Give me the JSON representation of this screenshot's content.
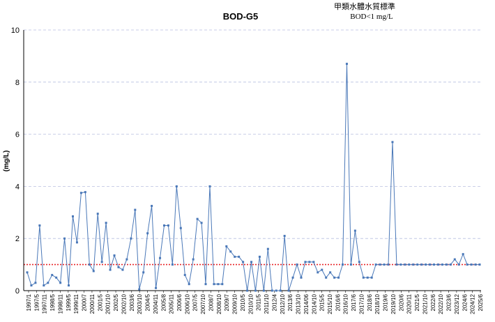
{
  "chart_data": {
    "type": "line",
    "title": "BOD-G5",
    "annotation_lines": [
      "甲類水體水質標準",
      "BOD<1 mg/L"
    ],
    "ylabel": "(mg/L)",
    "ylim": [
      0,
      10
    ],
    "yticks": [
      0,
      2,
      4,
      6,
      8,
      10
    ],
    "grid": "horizontal-dashed",
    "standard_line": {
      "value": 1,
      "color": "#e8262a"
    },
    "series_color": "#4a78b8",
    "x_tick_labels": [
      "1997/1",
      "1997/5",
      "1997/11",
      "1998/5",
      "1998/11",
      "1999/5",
      "1999/11",
      "2000/7",
      "2000/11",
      "2001/5",
      "2001/10",
      "2002/5",
      "2002/10",
      "2003/6",
      "2003/10",
      "2004/5",
      "2004/11",
      "2005/8",
      "2005/11",
      "2006/6",
      "2006/10",
      "2007/5",
      "2007/10",
      "2008/7",
      "2008/10",
      "2009/7",
      "2009/10",
      "2010/5",
      "2010/10",
      "2011/5",
      "2011/10",
      "2012/4",
      "2012/10",
      "2013/6",
      "2013/10",
      "2014/06",
      "2014/10",
      "2015/5",
      "2015/10",
      "2016/6",
      "2016/10",
      "2017/6",
      "2017/10",
      "2018/6",
      "2018/10",
      "2019/6",
      "2019/10",
      "2020/6",
      "2020/11",
      "2021/5",
      "2021/10",
      "2022/6",
      "2022/10",
      "2023/6",
      "2023/12",
      "2024/6",
      "2024/12",
      "2025/6"
    ],
    "values": [
      0.7,
      0.2,
      0.3,
      2.5,
      0.2,
      0.3,
      0.6,
      0.5,
      0.3,
      2.0,
      0.2,
      2.85,
      1.85,
      3.75,
      3.78,
      1.0,
      0.75,
      2.95,
      1.1,
      2.6,
      0.8,
      1.35,
      0.9,
      0.8,
      1.2,
      2.0,
      3.1,
      0.05,
      0.7,
      2.2,
      3.25,
      0.1,
      1.25,
      2.5,
      2.5,
      1.0,
      4.0,
      2.4,
      0.6,
      0.25,
      1.2,
      2.75,
      2.6,
      0.25,
      4.0,
      0.25,
      0.25,
      0.25,
      1.7,
      1.5,
      1.3,
      1.3,
      1.1,
      0.0,
      1.1,
      0.0,
      1.3,
      0.0,
      1.6,
      0.0,
      0.0,
      0.0,
      2.1,
      0.0,
      0.5,
      1.0,
      0.5,
      1.1,
      1.1,
      1.1,
      0.7,
      0.8,
      0.5,
      0.7,
      0.5,
      0.5,
      1.0,
      8.7,
      1.0,
      2.3,
      1.1,
      0.5,
      0.5,
      0.5,
      1.0,
      1.0,
      1.0,
      1.0,
      5.7,
      1.0,
      1.0,
      1.0,
      1.0,
      1.0,
      1.0,
      1.0,
      1.0,
      1.0,
      1.0,
      1.0,
      1.0,
      1.0,
      1.0,
      1.2,
      1.0,
      1.4,
      1.0,
      1.0,
      1.0,
      1.0
    ]
  }
}
